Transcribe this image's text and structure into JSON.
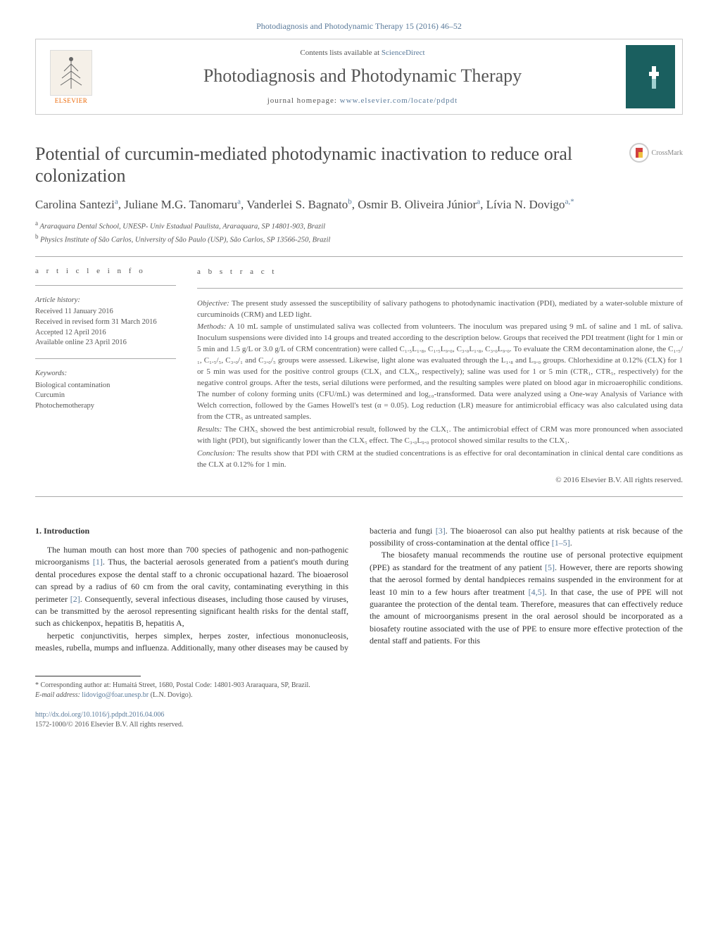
{
  "header": {
    "top_line": "Photodiagnosis and Photodynamic Therapy 15 (2016) 46–52",
    "contents_prefix": "Contents lists available at ",
    "contents_link": "ScienceDirect",
    "journal_name": "Photodiagnosis and Photodynamic Therapy",
    "homepage_prefix": "journal homepage: ",
    "homepage_link": "www.elsevier.com/locate/pdpdt",
    "elsevier_label": "ELSEVIER",
    "crossmark": "CrossMark"
  },
  "article": {
    "title": "Potential of curcumin-mediated photodynamic inactivation to reduce oral colonization",
    "authors_html": "Carolina Santezi<sup>a</sup>, Juliane M.G. Tanomaru<sup>a</sup>, Vanderlei S. Bagnato<sup>b</sup>, Osmir B. Oliveira Júnior<sup>a</sup>, Lívia N. Dovigo<sup>a,*</sup>",
    "affiliations": {
      "a": "Araraquara Dental School, UNESP- Univ Estadual Paulista, Araraquara, SP 14801-903, Brazil",
      "b": "Physics Institute of São Carlos, University of São Paulo (USP), São Carlos, SP 13566-250, Brazil"
    }
  },
  "info": {
    "section_label": "a r t i c l e   i n f o",
    "history_title": "Article history:",
    "history": [
      "Received 11 January 2016",
      "Received in revised form 31 March 2016",
      "Accepted 12 April 2016",
      "Available online 23 April 2016"
    ],
    "keywords_title": "Keywords:",
    "keywords": [
      "Biological contamination",
      "Curcumin",
      "Photochemotherapy"
    ]
  },
  "abstract": {
    "section_label": "a b s t r a c t",
    "objective_label": "Objective:",
    "objective": " The present study assessed the susceptibility of salivary pathogens to photodynamic inactivation (PDI), mediated by a water-soluble mixture of curcuminoids (CRM) and LED light.",
    "methods_label": "Methods:",
    "methods": " A 10 mL sample of unstimulated saliva was collected from volunteers. The inoculum was prepared using 9 mL of saline and 1 mL of saliva. Inoculum suspensions were divided into 14 groups and treated according to the description below. Groups that received the PDI treatment (light for 1 min or 5 min and 1.5 g/L or 3.0 g/L of CRM concentration) were called C₁.₅L₁.₈, C₁.₅L₉.₀, C₃.₀L₁.₈, C₃.₀L₉.₀. To evaluate the CRM decontamination alone, the C₁.₅/₁, C₁.₅/₅, C₃.₀/₁ and C₃.₀/₅ groups were assessed. Likewise, light alone was evaluated through the L₁.₈ and L₉.₀ groups. Chlorhexidine at 0.12% (CLX) for 1 or 5 min was used for the positive control groups (CLX₁ and CLX₅, respectively); saline was used for 1 or 5 min (CTR₁, CTR₅, respectively) for the negative control groups. After the tests, serial dilutions were performed, and the resulting samples were plated on blood agar in microaerophilic conditions. The number of colony forming units (CFU/mL) was determined and log₁₀-transformed. Data were analyzed using a One-way Analysis of Variance with Welch correction, followed by the Games Howell's test (α = 0.05). Log reduction (LR) measure for antimicrobial efficacy was also calculated using data from the CTR₅ as untreated samples.",
    "results_label": "Results:",
    "results": " The CHX₅ showed the best antimicrobial result, followed by the CLX₁. The antimicrobial effect of CRM was more pronounced when associated with light (PDI), but significantly lower than the CLX₅ effect. The C₃.₀L₉.₀ protocol showed similar results to the CLX₁.",
    "conclusion_label": "Conclusion:",
    "conclusion": " The results show that PDI with CRM at the studied concentrations is as effective for oral decontamination in clinical dental care conditions as the CLX at 0.12% for 1 min.",
    "copyright": "© 2016 Elsevier B.V. All rights reserved."
  },
  "body": {
    "intro_heading": "1. Introduction",
    "p1": "The human mouth can host more than 700 species of pathogenic and non-pathogenic microorganisms [1]. Thus, the bacterial aerosols generated from a patient's mouth during dental procedures expose the dental staff to a chronic occupational hazard. The bioaerosol can spread by a radius of 60 cm from the oral cavity, contaminating everything in this perimeter [2]. Consequently, several infectious diseases, including those caused by viruses, can be transmitted by the aerosol representing significant health risks for the dental staff, such as chickenpox, hepatitis B, hepatitis A,",
    "p2": "herpetic conjunctivitis, herpes simplex, herpes zoster, infectious mononucleosis, measles, rubella, mumps and influenza. Additionally, many other diseases may be caused by bacteria and fungi [3]. The bioaerosol can also put healthy patients at risk because of the possibility of cross-contamination at the dental office [1–5].",
    "p3": "The biosafety manual recommends the routine use of personal protective equipment (PPE) as standard for the treatment of any patient [5]. However, there are reports showing that the aerosol formed by dental handpieces remains suspended in the environment for at least 10 min to a few hours after treatment [4,5]. In that case, the use of PPE will not guarantee the protection of the dental team. Therefore, measures that can effectively reduce the amount of microorganisms present in the oral aerosol should be incorporated as a biosafety routine associated with the use of PPE to ensure more effective protection of the dental staff and patients. For this"
  },
  "footnotes": {
    "corr": "* Corresponding author at: Humaitá Street, 1680, Postal Code: 14801-903 Araraquara, SP, Brazil.",
    "email_label": "E-mail address: ",
    "email": "lidovigo@foar.unesp.br",
    "email_suffix": " (L.N. Dovigo).",
    "doi": "http://dx.doi.org/10.1016/j.pdpdt.2016.04.006",
    "issn_line": "1572-1000/© 2016 Elsevier B.V. All rights reserved."
  },
  "colors": {
    "link": "#5a7a9a",
    "text": "#555555",
    "orange": "#eb6500"
  }
}
